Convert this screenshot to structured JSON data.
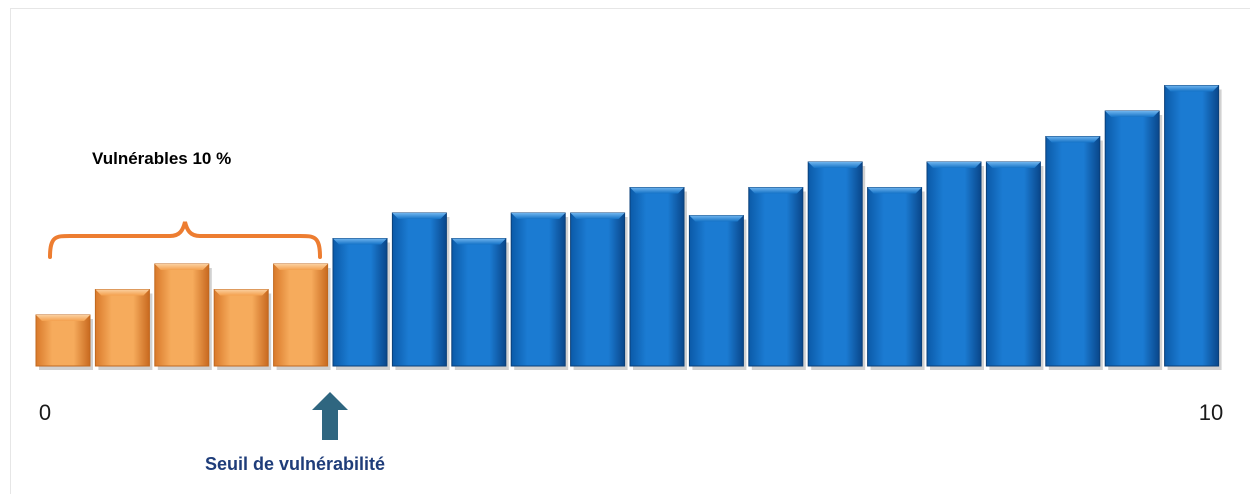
{
  "colors": {
    "vulnerable": "#f4a04d",
    "vulnerable_dark": "#c0681f",
    "regular": "#1472c6",
    "regular_dark": "#0a3f78",
    "brace": "#ed7d31",
    "arrow": "#2f6680",
    "threshold_text": "#1f3d7a"
  },
  "chart_data": {
    "type": "bar",
    "title": "",
    "xlabel": "",
    "ylabel": "",
    "x_range": [
      0,
      10
    ],
    "tick_labels": [
      "0",
      "10"
    ],
    "values": [
      1.0,
      1.5,
      2.0,
      1.5,
      2.0,
      2.5,
      3.0,
      2.5,
      3.0,
      3.0,
      3.5,
      2.95,
      3.5,
      4.0,
      3.5,
      4.0,
      4.0,
      4.5,
      5.0,
      5.5
    ],
    "ylim": [
      0,
      6
    ],
    "highlighted_count": 5,
    "annotations": {
      "group_label": "Vulnérables 10 %",
      "threshold_label": "Seuil de vulnérabilité"
    },
    "grid": false,
    "legend": "none"
  }
}
